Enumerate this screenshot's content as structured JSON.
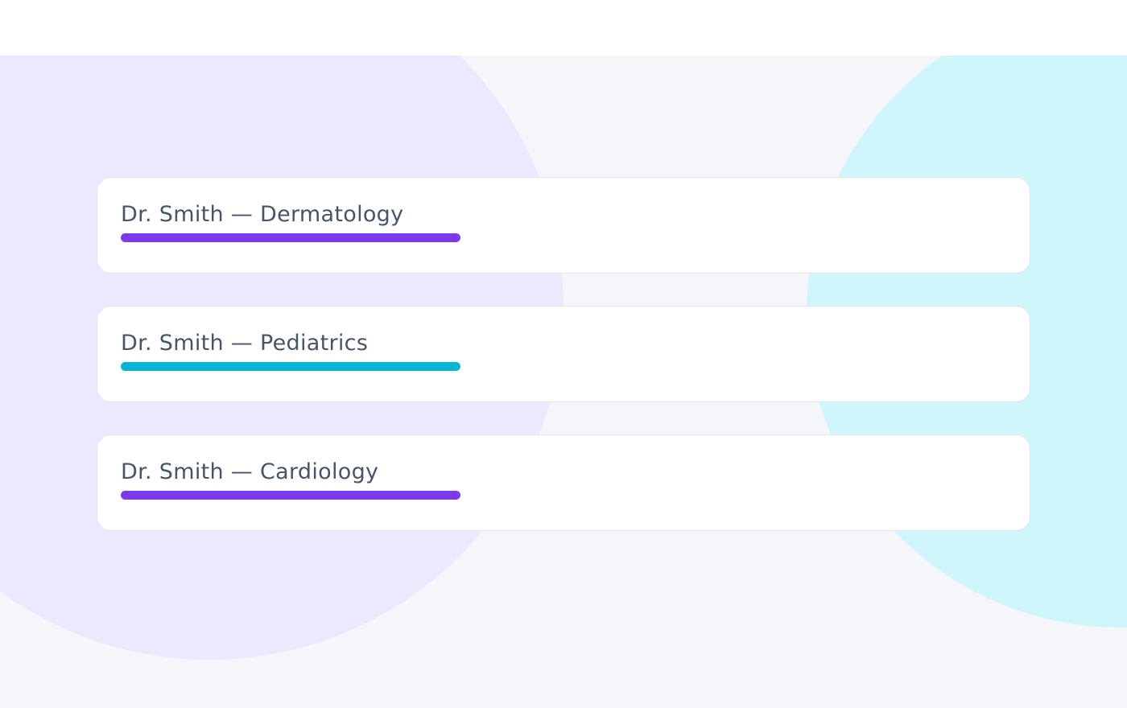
{
  "colors": {
    "background": "#f5f6fa",
    "blob_left": "#ebe9fd",
    "blob_right": "#cff7fb",
    "text": "#475569"
  },
  "cards": [
    {
      "label": "Dr. Smith — Dermatology",
      "bar_color": "#7c3aed"
    },
    {
      "label": "Dr. Smith — Pediatrics",
      "bar_color": "#06b6d4"
    },
    {
      "label": "Dr. Smith — Cardiology",
      "bar_color": "#7c3aed"
    }
  ]
}
